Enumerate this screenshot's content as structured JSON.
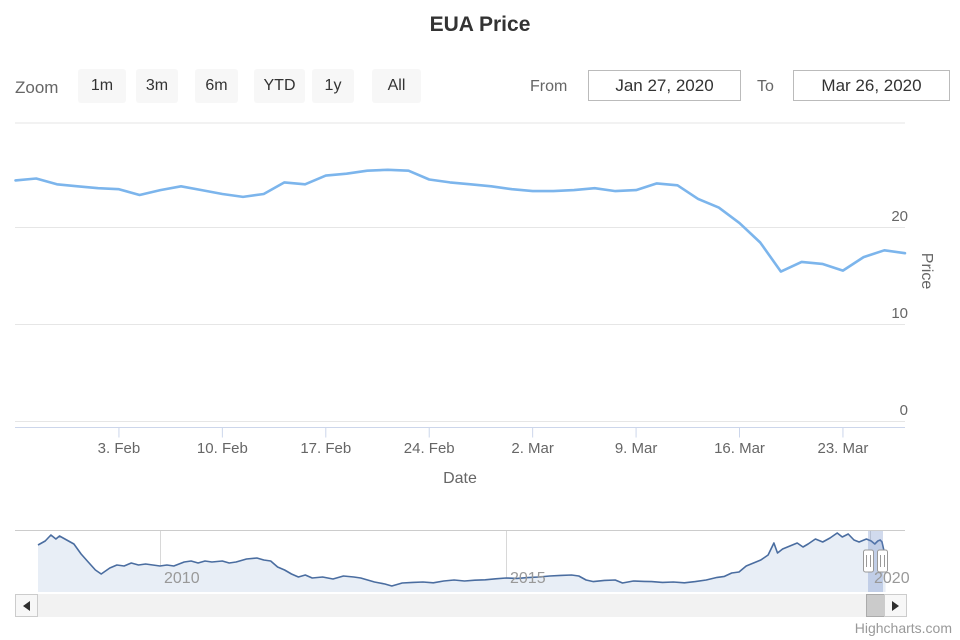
{
  "chart": {
    "title": "EUA Price",
    "credit": "Highcharts.com"
  },
  "range_selector": {
    "zoom_label": "Zoom",
    "buttons": [
      "1m",
      "3m",
      "6m",
      "YTD",
      "1y",
      "All"
    ],
    "from_label": "From",
    "from_value": "Jan 27, 2020",
    "to_label": "To",
    "to_value": "Mar 26, 2020"
  },
  "chart_data": {
    "type": "line",
    "title": "EUA Price",
    "xlabel": "Date",
    "ylabel": "Price",
    "ylim": [
      0,
      30.7
    ],
    "grid": true,
    "legend": "none",
    "yticks": [
      0,
      10,
      20
    ],
    "xticks": [
      "3. Feb",
      "10. Feb",
      "17. Feb",
      "24. Feb",
      "2. Mar",
      "9. Mar",
      "16. Mar",
      "23. Mar"
    ],
    "series": [
      {
        "name": "EUA Price",
        "color": "#7cb5ec",
        "dates": [
          "Jan 27",
          "Jan 28",
          "Jan 29",
          "Jan 30",
          "Jan 31",
          "Feb 3",
          "Feb 4",
          "Feb 5",
          "Feb 6",
          "Feb 7",
          "Feb 10",
          "Feb 11",
          "Feb 12",
          "Feb 13",
          "Feb 14",
          "Feb 17",
          "Feb 18",
          "Feb 19",
          "Feb 20",
          "Feb 21",
          "Feb 24",
          "Feb 25",
          "Feb 26",
          "Feb 27",
          "Feb 28",
          "Mar 2",
          "Mar 3",
          "Mar 4",
          "Mar 5",
          "Mar 6",
          "Mar 9",
          "Mar 10",
          "Mar 11",
          "Mar 12",
          "Mar 13",
          "Mar 16",
          "Mar 17",
          "Mar 18",
          "Mar 19",
          "Mar 20",
          "Mar 23",
          "Mar 24",
          "Mar 25",
          "Mar 26"
        ],
        "values": [
          24.8,
          25.0,
          24.4,
          24.2,
          24.0,
          23.9,
          23.3,
          23.8,
          24.2,
          23.8,
          23.4,
          23.1,
          23.4,
          24.6,
          24.4,
          25.3,
          25.5,
          25.8,
          25.9,
          25.8,
          24.9,
          24.6,
          24.4,
          24.2,
          23.9,
          23.7,
          23.7,
          23.8,
          24.0,
          23.7,
          23.8,
          24.5,
          24.3,
          22.9,
          22.0,
          20.4,
          18.4,
          15.4,
          16.4,
          16.2,
          15.5,
          16.9,
          17.6,
          17.3
        ]
      }
    ],
    "navigator": {
      "line_color": "#4a6da0",
      "fill_color": "#e8eef6",
      "mask_color": "rgba(102,133,194,0.3)",
      "year_labels": [
        "2010",
        "2015",
        "2020"
      ],
      "points": [
        [
          2008.3,
          23.5
        ],
        [
          2008.4,
          25.5
        ],
        [
          2008.48,
          28.5
        ],
        [
          2008.55,
          26.5
        ],
        [
          2008.6,
          28.0
        ],
        [
          2008.7,
          26.0
        ],
        [
          2008.8,
          24.0
        ],
        [
          2008.9,
          19.0
        ],
        [
          2009.0,
          15.0
        ],
        [
          2009.1,
          11.0
        ],
        [
          2009.18,
          9.0
        ],
        [
          2009.3,
          12.0
        ],
        [
          2009.4,
          13.5
        ],
        [
          2009.5,
          13.0
        ],
        [
          2009.6,
          14.5
        ],
        [
          2009.7,
          13.5
        ],
        [
          2009.8,
          14.0
        ],
        [
          2009.9,
          13.5
        ],
        [
          2010.0,
          13.0
        ],
        [
          2010.1,
          13.5
        ],
        [
          2010.2,
          13.0
        ],
        [
          2010.35,
          15.0
        ],
        [
          2010.45,
          15.5
        ],
        [
          2010.55,
          14.5
        ],
        [
          2010.65,
          15.5
        ],
        [
          2010.75,
          15.0
        ],
        [
          2010.9,
          15.5
        ],
        [
          2011.0,
          14.5
        ],
        [
          2011.1,
          15.0
        ],
        [
          2011.25,
          16.5
        ],
        [
          2011.4,
          17.0
        ],
        [
          2011.5,
          16.0
        ],
        [
          2011.6,
          15.5
        ],
        [
          2011.7,
          12.5
        ],
        [
          2011.8,
          11.0
        ],
        [
          2011.9,
          9.0
        ],
        [
          2012.0,
          7.5
        ],
        [
          2012.1,
          8.5
        ],
        [
          2012.2,
          7.0
        ],
        [
          2012.35,
          7.5
        ],
        [
          2012.5,
          6.5
        ],
        [
          2012.65,
          8.0
        ],
        [
          2012.8,
          7.5
        ],
        [
          2012.9,
          7.0
        ],
        [
          2013.0,
          6.0
        ],
        [
          2013.1,
          5.0
        ],
        [
          2013.25,
          4.0
        ],
        [
          2013.35,
          3.0
        ],
        [
          2013.5,
          4.5
        ],
        [
          2013.65,
          4.8
        ],
        [
          2013.8,
          5.0
        ],
        [
          2013.95,
          4.6
        ],
        [
          2014.1,
          5.5
        ],
        [
          2014.25,
          6.0
        ],
        [
          2014.4,
          5.5
        ],
        [
          2014.55,
          5.9
        ],
        [
          2014.7,
          6.1
        ],
        [
          2014.85,
          6.6
        ],
        [
          2015.0,
          7.0
        ],
        [
          2015.15,
          6.8
        ],
        [
          2015.3,
          7.2
        ],
        [
          2015.45,
          7.5
        ],
        [
          2015.6,
          8.0
        ],
        [
          2015.75,
          8.3
        ],
        [
          2015.9,
          8.5
        ],
        [
          2016.0,
          8.0
        ],
        [
          2016.1,
          6.0
        ],
        [
          2016.2,
          5.2
        ],
        [
          2016.35,
          5.8
        ],
        [
          2016.5,
          6.0
        ],
        [
          2016.6,
          4.5
        ],
        [
          2016.75,
          5.5
        ],
        [
          2016.9,
          5.3
        ],
        [
          2017.0,
          5.2
        ],
        [
          2017.15,
          4.8
        ],
        [
          2017.3,
          5.0
        ],
        [
          2017.45,
          4.6
        ],
        [
          2017.6,
          5.2
        ],
        [
          2017.75,
          6.0
        ],
        [
          2017.9,
          7.3
        ],
        [
          2018.0,
          7.8
        ],
        [
          2018.1,
          9.5
        ],
        [
          2018.2,
          10.0
        ],
        [
          2018.3,
          13.0
        ],
        [
          2018.4,
          14.5
        ],
        [
          2018.5,
          16.0
        ],
        [
          2018.6,
          18.5
        ],
        [
          2018.68,
          24.5
        ],
        [
          2018.73,
          19.5
        ],
        [
          2018.8,
          21.5
        ],
        [
          2018.9,
          23.0
        ],
        [
          2019.0,
          24.5
        ],
        [
          2019.08,
          22.5
        ],
        [
          2019.15,
          24.0
        ],
        [
          2019.25,
          26.5
        ],
        [
          2019.35,
          25.0
        ],
        [
          2019.45,
          27.0
        ],
        [
          2019.55,
          29.5
        ],
        [
          2019.62,
          27.5
        ],
        [
          2019.7,
          29.0
        ],
        [
          2019.78,
          26.0
        ],
        [
          2019.85,
          25.0
        ],
        [
          2019.95,
          26.5
        ],
        [
          2020.02,
          25.5
        ],
        [
          2020.08,
          24.0
        ],
        [
          2020.13,
          25.5
        ],
        [
          2020.17,
          26.0
        ],
        [
          2020.2,
          25.0
        ],
        [
          2020.23,
          21.0
        ],
        [
          2020.26,
          17.0
        ]
      ]
    }
  },
  "colors": {
    "series_line": "#7cb5ec",
    "grid_line": "#e6e6e6",
    "axis_line": "#ccd6eb",
    "label_text": "#666666",
    "button_bg": "#f7f7f7"
  }
}
